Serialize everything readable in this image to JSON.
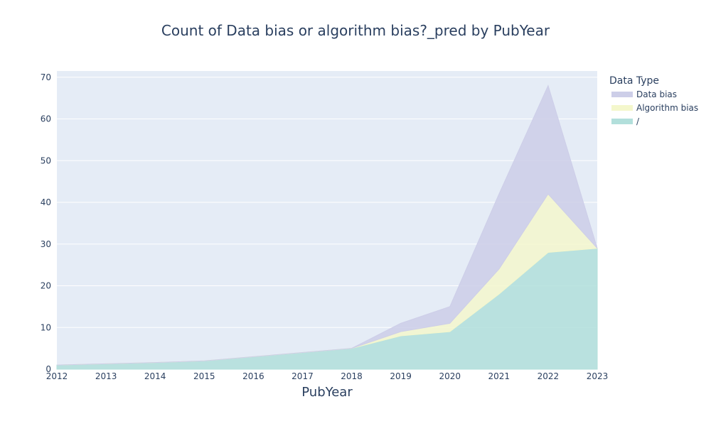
{
  "chart_data": {
    "type": "area",
    "stacked": true,
    "title": "Count of Data bias or algorithm bias?_pred by PubYear",
    "xlabel": "PubYear",
    "ylabel": "",
    "x": [
      2012,
      2013,
      2014,
      2015,
      2016,
      2017,
      2018,
      2019,
      2020,
      2021,
      2022,
      2023
    ],
    "x_ticks": [
      "2012",
      "2013",
      "2014",
      "2015",
      "2016",
      "2017",
      "2018",
      "2019",
      "2020",
      "2021",
      "2022",
      "2023"
    ],
    "y_ticks": [
      "0",
      "10",
      "20",
      "30",
      "40",
      "50",
      "60",
      "70"
    ],
    "xlim": [
      2012,
      2023
    ],
    "ylim": [
      0,
      71.5
    ],
    "grid": true,
    "legend_title": "Data Type",
    "legend_position": "right",
    "series": [
      {
        "name": "/",
        "color": "#b2dfdb",
        "values": [
          1,
          1.3,
          1.6,
          2,
          3,
          4,
          5,
          8,
          9,
          18,
          28,
          29
        ]
      },
      {
        "name": "Algorithm bias",
        "color": "#f4f7cc",
        "values": [
          0,
          0,
          0,
          0,
          0,
          0,
          0,
          1,
          2,
          6,
          14,
          0
        ]
      },
      {
        "name": "Data bias",
        "color": "#cdcee8",
        "values": [
          0,
          0,
          0,
          0,
          0,
          0,
          0,
          2,
          4,
          18,
          26,
          0
        ]
      }
    ],
    "legend_order": [
      "Data bias",
      "Algorithm bias",
      "/"
    ]
  }
}
